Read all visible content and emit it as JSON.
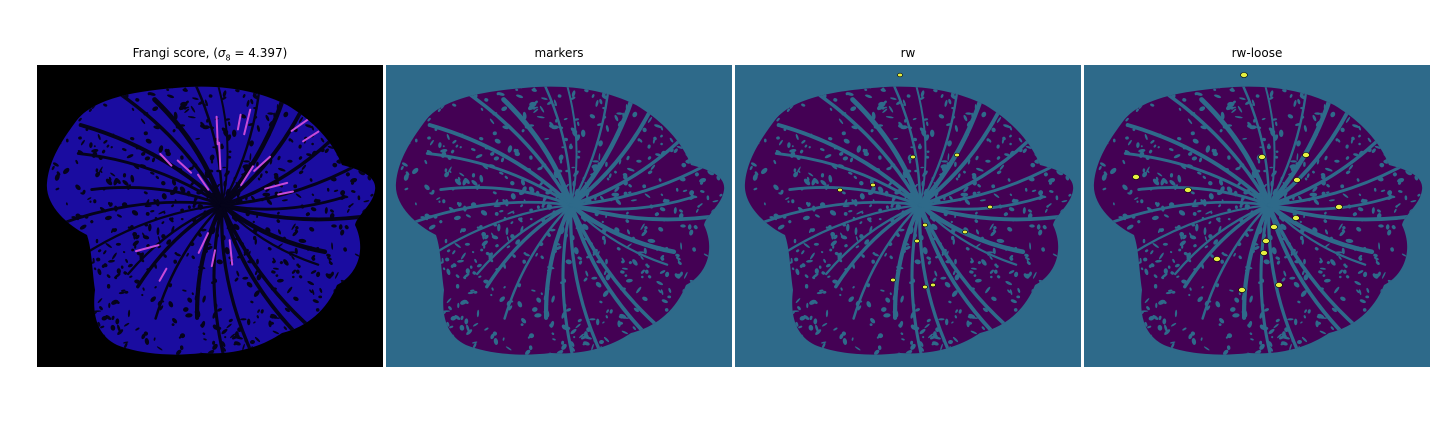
{
  "figure": {
    "panels": [
      {
        "title_prefix": "Frangi score, (",
        "title_sigma": "σ",
        "title_sub": "8",
        "title_suffix": " = 4.397)",
        "background": "#000000",
        "blob_fill": "#1a0ca0",
        "pattern_color": "#05031a",
        "highlight_color": "#c84ad8"
      },
      {
        "title": "markers",
        "background": "#2e6a8a",
        "blob_fill": "#440154",
        "pattern_color": "#2e6a8a"
      },
      {
        "title": "rw",
        "background": "#2e6a8a",
        "blob_fill": "#440154",
        "pattern_color": "#2e6a8a",
        "marker_color": "#e6f040"
      },
      {
        "title": "rw-loose",
        "background": "#2e6a8a",
        "blob_fill": "#440154",
        "pattern_color": "#2e6a8a",
        "marker_color": "#e6f040"
      }
    ]
  }
}
